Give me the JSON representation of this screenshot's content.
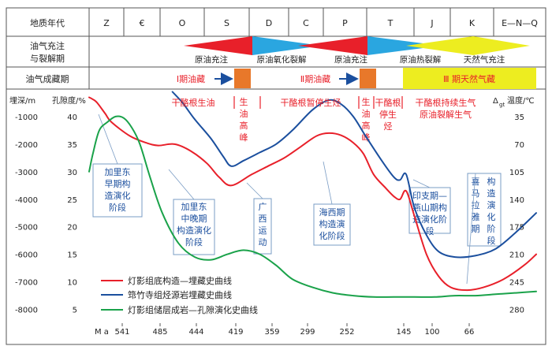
{
  "chart_data": {
    "type": "line",
    "title": "",
    "header": {
      "row1_label": "地质年代",
      "periods": [
        "Z",
        "€",
        "O",
        "S",
        "D",
        "C",
        "P",
        "T",
        "J",
        "K",
        "E—N—Q"
      ],
      "row2_label_1": "油气充注",
      "row2_label_2": "与裂解期",
      "stage_labels": [
        "原油充注",
        "原油氧化裂解",
        "原油充注",
        "原油热裂解",
        "天然气充注"
      ],
      "row3_label": "油气成藏期",
      "phase_labels": [
        "Ⅰ期油藏",
        "Ⅱ期油藏",
        "Ⅲ 期天然气藏"
      ]
    },
    "axes": {
      "depth_label": "埋深/m",
      "porosity_label": "孔隙度/%",
      "temperature_label": "温度/℃",
      "temperature_prefix": "Δ",
      "temperature_sub": "gt",
      "time_unit": "M a",
      "depth_ticks": [
        "-1000",
        "-2000",
        "-3000",
        "-4000",
        "-5000",
        "-6000",
        "-7000",
        "-8000"
      ],
      "porosity_ticks": [
        "40",
        "35",
        "30",
        "25",
        "20",
        "15",
        "10",
        "5"
      ],
      "temperature_ticks": [
        "35",
        "70",
        "105",
        "140",
        "175",
        "210",
        "245",
        "280"
      ],
      "age_ticks": [
        "541",
        "485",
        "444",
        "419",
        "359",
        "299",
        "252",
        "145",
        "100",
        "66"
      ],
      "depth_range": [
        0,
        -8500
      ],
      "temperature_range": [
        0,
        297.5
      ]
    },
    "events": [
      "干酪根生油",
      "生油高峰",
      "干酪根暂停生烃",
      "生油高峰",
      "干酪根停生烃",
      "干酪根持续生气",
      "原油裂解生气"
    ],
    "tectonic_stages": [
      "加里东早期构造演化阶段",
      "加里东中晚期构造演化阶段",
      "广西运动",
      "海西期构造演化阶段",
      "印支期—燕山期构造演化阶段",
      "喜马拉雅期构造演化阶段"
    ],
    "series": [
      {
        "name": "灯影组底构造—埋藏史曲线",
        "color": "#e8202a",
        "x": [
          0,
          0.1,
          0.2,
          0.4,
          0.55,
          1,
          1.4,
          1.7,
          2.1,
          2.5,
          2.9,
          3.2,
          3.5,
          4,
          4.4,
          4.8,
          5.2,
          5.6,
          5.9,
          6.2,
          6.5,
          6.75,
          7,
          7.3,
          7.5,
          7.65,
          7.8,
          8,
          8.3,
          8.6,
          8.9,
          9.3,
          9.7,
          10.2,
          10.7,
          11
        ],
        "y": [
          -300,
          -380,
          -500,
          -900,
          -1200,
          -1700,
          -1950,
          -2050,
          -2000,
          -2250,
          -2700,
          -3200,
          -3500,
          -3100,
          -2800,
          -2500,
          -2100,
          -1700,
          -1600,
          -1680,
          -1950,
          -2350,
          -3100,
          -3600,
          -3900,
          -4000,
          -3700,
          -4600,
          -6000,
          -6800,
          -7200,
          -7300,
          -7200,
          -6900,
          -6400,
          -6000
        ]
      },
      {
        "name": "筇竹寺组烃源岩埋藏史曲线",
        "color": "#1b4f9e",
        "x": [
          2.05,
          2.3,
          2.6,
          3.0,
          3.3,
          3.5,
          3.8,
          4.2,
          4.6,
          5.0,
          5.5,
          5.9,
          6.2,
          6.5,
          6.8,
          7.2,
          7.5,
          7.65,
          7.8,
          8.0,
          8.3,
          8.6,
          9.0,
          9.5,
          10.0,
          10.5,
          11
        ],
        "y": [
          -100,
          -500,
          -1100,
          -1800,
          -2450,
          -2800,
          -2600,
          -2300,
          -2000,
          -1500,
          -750,
          -400,
          -550,
          -1000,
          -1700,
          -2600,
          -3200,
          -3300,
          -3100,
          -4300,
          -5300,
          -5900,
          -6100,
          -6050,
          -5800,
          -5200,
          -4500
        ]
      },
      {
        "name": "灯影组储层成岩—孔隙演化史曲线",
        "color": "#1aa24a",
        "x": [
          0,
          0.1,
          0.25,
          0.45,
          0.65,
          0.85,
          1.05,
          1.25,
          1.5,
          1.8,
          2.2,
          2.6,
          3.0,
          3.4,
          3.8,
          4.2,
          4.6,
          5.0,
          5.5,
          6.0,
          6.5,
          7.0,
          7.5,
          8.0,
          8.5,
          9.0,
          9.5,
          10.0,
          10.5,
          11
        ],
        "y": [
          -3000,
          -2300,
          -1500,
          -1200,
          -1000,
          -1050,
          -1400,
          -2000,
          -3200,
          -4500,
          -5600,
          -6100,
          -6200,
          -6000,
          -5850,
          -6000,
          -6400,
          -6900,
          -7200,
          -7400,
          -7500,
          -7550,
          -7550,
          -7550,
          -7550,
          -7500,
          -7500,
          -7450,
          -7400,
          -7350
        ]
      }
    ],
    "legend_position": "bottom-left"
  }
}
